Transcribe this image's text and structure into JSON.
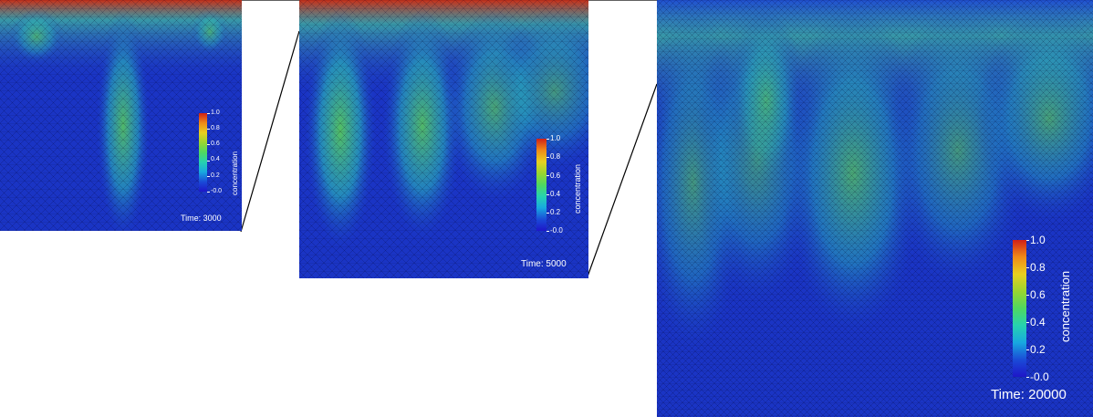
{
  "colormap": [
    "#1e16c8",
    "#1a4bd8",
    "#18a8e0",
    "#26d2b0",
    "#4fd860",
    "#9ad530",
    "#e8d020",
    "#f08a18",
    "#d02018"
  ],
  "panels": [
    {
      "name": "panel-time-3000",
      "time_label": "Time: 3000",
      "colorbar_title": "concentration",
      "ticks": [
        "1.0",
        "0.8",
        "0.6",
        "0.4",
        "0.2",
        "-0.0"
      ]
    },
    {
      "name": "panel-time-5000",
      "time_label": "Time: 5000",
      "colorbar_title": "concentration",
      "ticks": [
        "1.0",
        "0.8",
        "0.6",
        "0.4",
        "0.2",
        "-0.0"
      ]
    },
    {
      "name": "panel-time-20000",
      "time_label": "Time: 20000",
      "colorbar_title": "concentration",
      "ticks": [
        "1.0",
        "0.8",
        "0.6",
        "0.4",
        "0.2",
        "-0.0"
      ]
    }
  ]
}
